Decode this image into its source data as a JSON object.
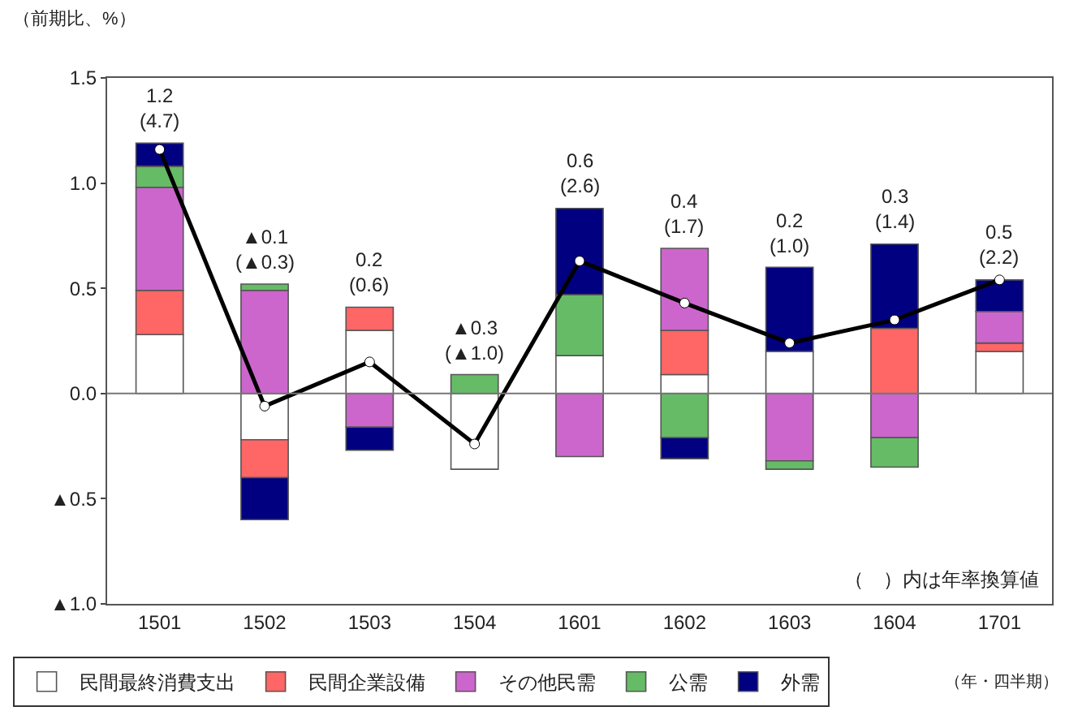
{
  "chart_data": {
    "type": "bar",
    "stacked": true,
    "ylabel": "（前期比、%）",
    "categories": [
      "1501",
      "1502",
      "1503",
      "1504",
      "1601",
      "1602",
      "1603",
      "1604",
      "1701"
    ],
    "series": [
      {
        "name": "民間最終消費支出",
        "color": "#ffffff",
        "values": [
          0.28,
          -0.22,
          0.3,
          -0.36,
          0.18,
          0.09,
          0.2,
          0,
          0.2
        ]
      },
      {
        "name": "民間企業設備",
        "color": "#ff6666",
        "values": [
          0.21,
          -0.18,
          0.11,
          0,
          0,
          0.21,
          0,
          0.31,
          0.04
        ]
      },
      {
        "name": "その他民需",
        "color": "#cc66cc",
        "values": [
          0.49,
          0.49,
          -0.16,
          0,
          -0.3,
          0.39,
          -0.32,
          -0.21,
          0.15
        ]
      },
      {
        "name": "公需",
        "color": "#66bb66",
        "values": [
          0.1,
          0.03,
          0,
          0.09,
          0.29,
          -0.21,
          -0.04,
          -0.14,
          0
        ]
      },
      {
        "name": "外需",
        "color": "#000080",
        "values": [
          0.11,
          -0.2,
          -0.11,
          0,
          0.41,
          -0.1,
          0.4,
          0.4,
          0.15
        ]
      },
      {
        "type": "line",
        "color": "#000000",
        "marker": "circle",
        "values": [
          1.16,
          -0.06,
          0.15,
          -0.24,
          0.63,
          0.43,
          0.24,
          0.35,
          0.54
        ]
      }
    ],
    "ylim": [
      -1,
      1.5
    ],
    "yticks": [
      {
        "value": -1,
        "label": "▲1.0"
      },
      {
        "value": -0.5,
        "label": "▲0.5"
      },
      {
        "value": 0,
        "label": "0.0"
      },
      {
        "value": 0.5,
        "label": "0.5"
      },
      {
        "value": 1,
        "label": "1.0"
      },
      {
        "value": 1.5,
        "label": "1.5"
      }
    ],
    "legend": "bottom",
    "ref_lines": [
      {
        "axis": "y",
        "value": 0,
        "color": "#777777"
      }
    ],
    "annotations": [
      "1.2\n(4.7)",
      "▲0.1\n(▲0.3)",
      "0.2\n(0.6)",
      "▲0.3\n(▲1.0)",
      "0.6\n(2.6)",
      "0.4\n(1.7)",
      "0.2\n(1.0)",
      "0.3\n(1.4)",
      "0.5\n(2.2)",
      "（　）内は年率換算値",
      "（年・四半期）"
    ]
  }
}
